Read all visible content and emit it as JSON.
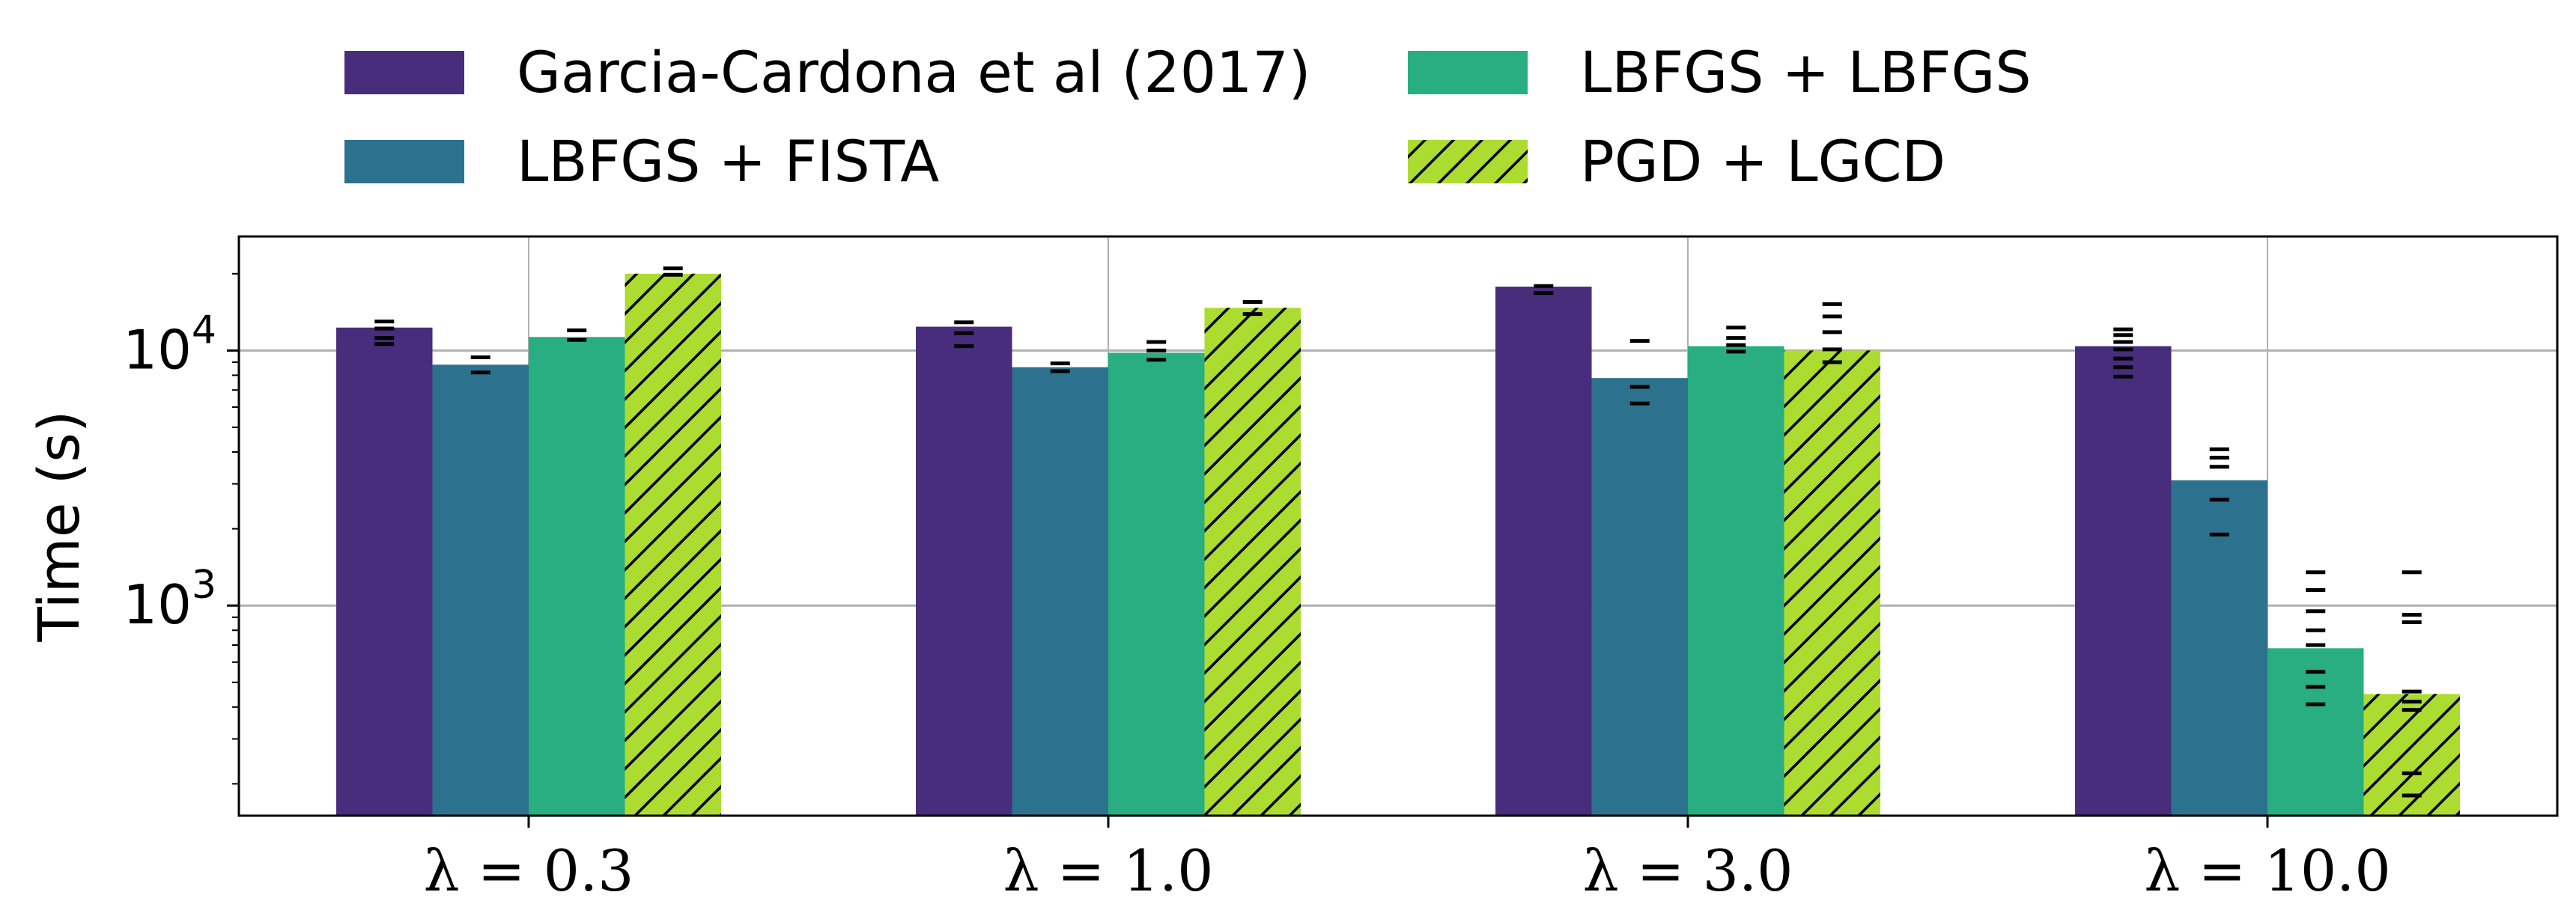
{
  "chart_data": {
    "type": "bar",
    "title": "",
    "xlabel": "",
    "ylabel": "Time (s)",
    "yscale": "log",
    "ylim": [
      150,
      28000
    ],
    "grid": true,
    "legend_position": "top",
    "categories": [
      "λ = 0.3",
      "λ = 1.0",
      "λ = 3.0",
      "λ = 10.0"
    ],
    "y_ticks": [
      {
        "value": 1000,
        "base": "10",
        "exp": "3"
      },
      {
        "value": 10000,
        "base": "10",
        "exp": "4"
      }
    ],
    "series": [
      {
        "name": "Garcia-Cardona et al (2017)",
        "color": "#472d7b",
        "hatch": false,
        "values": [
          12300,
          12400,
          17800,
          10400
        ],
        "runs": [
          [
            13000,
            12200,
            11200,
            10600
          ],
          [
            12900,
            11700,
            10400
          ],
          [
            17900,
            16800
          ],
          [
            12100,
            11500,
            10800,
            10100,
            9300,
            8600,
            7900
          ]
        ]
      },
      {
        "name": "LBFGS + FISTA",
        "color": "#2c728e",
        "hatch": false,
        "values": [
          8800,
          8600,
          7800,
          3100
        ],
        "runs": [
          [
            9400,
            8200
          ],
          [
            8900,
            8300
          ],
          [
            10900,
            7200,
            6200
          ],
          [
            4100,
            3800,
            3500,
            2600,
            1900
          ]
        ]
      },
      {
        "name": "LBFGS + LBFGS",
        "color": "#28ae80",
        "hatch": false,
        "values": [
          11300,
          9800,
          10400,
          680
        ],
        "runs": [
          [
            12000,
            11000
          ],
          [
            10800,
            10000,
            9200
          ],
          [
            12300,
            11200,
            10500,
            9900
          ],
          [
            1350,
            1150,
            950,
            800,
            700,
            550,
            480,
            410
          ]
        ]
      },
      {
        "name": "PGD + LGCD",
        "color": "#addc30",
        "hatch": true,
        "values": [
          20000,
          14700,
          10000,
          450
        ],
        "runs": [
          [
            21000,
            19800
          ],
          [
            15500,
            13900
          ],
          [
            15200,
            13600,
            11800,
            10100,
            9000
          ],
          [
            1350,
            920,
            860,
            460,
            420,
            390,
            220,
            180
          ]
        ]
      }
    ]
  }
}
